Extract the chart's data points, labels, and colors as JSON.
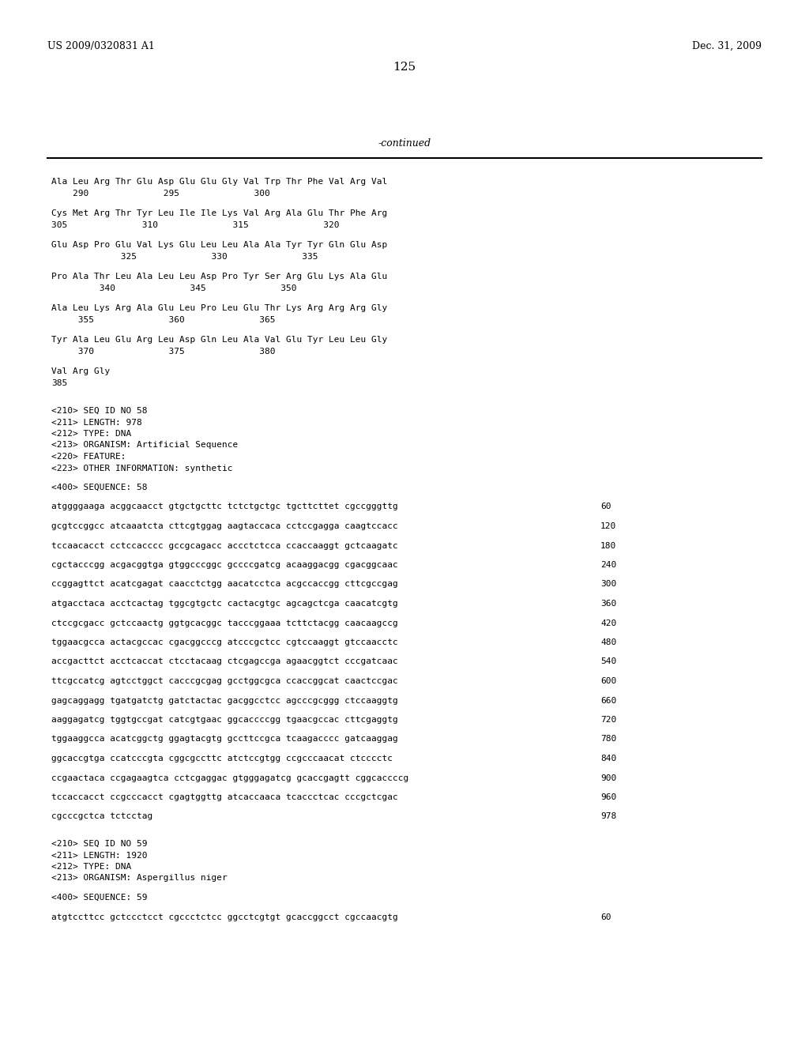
{
  "bg_color": "#ffffff",
  "header_left": "US 2009/0320831 A1",
  "header_right": "Dec. 31, 2009",
  "page_number": "125",
  "continued_label": "-continued",
  "content": [
    {
      "type": "aa_seq",
      "line1": "Ala Leu Arg Thr Glu Asp Glu Glu Gly Val Trp Thr Phe Val Arg Val",
      "line2": "    290              295              300"
    },
    {
      "type": "aa_seq",
      "line1": "Cys Met Arg Thr Tyr Leu Ile Ile Lys Val Arg Ala Glu Thr Phe Arg",
      "line2": "305              310              315              320"
    },
    {
      "type": "aa_seq",
      "line1": "Glu Asp Pro Glu Val Lys Glu Leu Leu Ala Ala Tyr Tyr Gln Glu Asp",
      "line2": "             325              330              335"
    },
    {
      "type": "aa_seq",
      "line1": "Pro Ala Thr Leu Ala Leu Leu Asp Pro Tyr Ser Arg Glu Lys Ala Glu",
      "line2": "         340              345              350"
    },
    {
      "type": "aa_seq",
      "line1": "Ala Leu Lys Arg Ala Glu Leu Pro Leu Glu Thr Lys Arg Arg Arg Gly",
      "line2": "     355              360              365"
    },
    {
      "type": "aa_seq",
      "line1": "Tyr Ala Leu Glu Arg Leu Asp Gln Leu Ala Val Glu Tyr Leu Leu Gly",
      "line2": "     370              375              380"
    },
    {
      "type": "aa_seq",
      "line1": "Val Arg Gly",
      "line2": "385"
    },
    {
      "type": "blank"
    },
    {
      "type": "meta",
      "text": "<210> SEQ ID NO 58"
    },
    {
      "type": "meta",
      "text": "<211> LENGTH: 978"
    },
    {
      "type": "meta",
      "text": "<212> TYPE: DNA"
    },
    {
      "type": "meta",
      "text": "<213> ORGANISM: Artificial Sequence"
    },
    {
      "type": "meta",
      "text": "<220> FEATURE:"
    },
    {
      "type": "meta",
      "text": "<223> OTHER INFORMATION: synthetic"
    },
    {
      "type": "blank"
    },
    {
      "type": "meta",
      "text": "<400> SEQUENCE: 58"
    },
    {
      "type": "blank"
    },
    {
      "type": "dna_seq",
      "line": "atggggaaga acggcaacct gtgctgcttc tctctgctgc tgcttcttet cgccgggttg",
      "num": "60"
    },
    {
      "type": "blank"
    },
    {
      "type": "dna_seq",
      "line": "gcgtccggcc atcaaatcta cttcgtggag aagtaccaca cctccgagga caagtccacc",
      "num": "120"
    },
    {
      "type": "blank"
    },
    {
      "type": "dna_seq",
      "line": "tccaacacct cctccacccc gccgcagacc accctctcca ccaccaaggt gctcaagatc",
      "num": "180"
    },
    {
      "type": "blank"
    },
    {
      "type": "dna_seq",
      "line": "cgctacccgg acgacggtga gtggcccggc gccccgatcg acaaggacgg cgacggcaac",
      "num": "240"
    },
    {
      "type": "blank"
    },
    {
      "type": "dna_seq",
      "line": "ccggagttct acatcgagat caacctctgg aacatcctca acgccaccgg cttcgccgag",
      "num": "300"
    },
    {
      "type": "blank"
    },
    {
      "type": "dna_seq",
      "line": "atgacctaca acctcactag tggcgtgctc cactacgtgc agcagctcga caacatcgtg",
      "num": "360"
    },
    {
      "type": "blank"
    },
    {
      "type": "dna_seq",
      "line": "ctccgcgacc gctccaactg ggtgcacggc tacccggaaa tcttctacgg caacaagccg",
      "num": "420"
    },
    {
      "type": "blank"
    },
    {
      "type": "dna_seq",
      "line": "tggaacgcca actacgccac cgacggcccg atcccgctcc cgtccaaggt gtccaacctc",
      "num": "480"
    },
    {
      "type": "blank"
    },
    {
      "type": "dna_seq",
      "line": "accgacttct acctcaccat ctcctacaag ctcgagccga agaacggtct cccgatcaac",
      "num": "540"
    },
    {
      "type": "blank"
    },
    {
      "type": "dna_seq",
      "line": "ttcgccatcg agtcctggct cacccgcgag gcctggcgca ccaccggcat caactccgac",
      "num": "600"
    },
    {
      "type": "blank"
    },
    {
      "type": "dna_seq",
      "line": "gagcaggagg tgatgatctg gatctactac gacggcctcc agcccgcggg ctccaaggtg",
      "num": "660"
    },
    {
      "type": "blank"
    },
    {
      "type": "dna_seq",
      "line": "aaggagatcg tggtgccgat catcgtgaac ggcaccccgg tgaacgccac cttcgaggtg",
      "num": "720"
    },
    {
      "type": "blank"
    },
    {
      "type": "dna_seq",
      "line": "tggaaggcca acatcggctg ggagtacgtg gccttccgca tcaagacccc gatcaaggag",
      "num": "780"
    },
    {
      "type": "blank"
    },
    {
      "type": "dna_seq",
      "line": "ggcaccgtga ccatcccgta cggcgccttc atctccgtgg ccgcccaacat ctcccctc",
      "num": "840"
    },
    {
      "type": "blank"
    },
    {
      "type": "dna_seq",
      "line": "ccgaactaca ccgagaagtca cctcgaggac gtgggagatcg gcaccgagtt cggcaccccg",
      "num": "900"
    },
    {
      "type": "blank"
    },
    {
      "type": "dna_seq",
      "line": "tccaccacct ccgcccacct cgagtggttg atcaccaaca tcaccctcac cccgctcgac",
      "num": "960"
    },
    {
      "type": "blank"
    },
    {
      "type": "dna_seq",
      "line": "cgcccgctca tctcctag",
      "num": "978"
    },
    {
      "type": "blank"
    },
    {
      "type": "blank"
    },
    {
      "type": "meta",
      "text": "<210> SEQ ID NO 59"
    },
    {
      "type": "meta",
      "text": "<211> LENGTH: 1920"
    },
    {
      "type": "meta",
      "text": "<212> TYPE: DNA"
    },
    {
      "type": "meta",
      "text": "<213> ORGANISM: Aspergillus niger"
    },
    {
      "type": "blank"
    },
    {
      "type": "meta",
      "text": "<400> SEQUENCE: 59"
    },
    {
      "type": "blank"
    },
    {
      "type": "dna_seq",
      "line": "atgtccttcc gctccctcct cgccctctcc ggcctcgtgt gcaccggcct cgccaacgtg",
      "num": "60"
    }
  ]
}
